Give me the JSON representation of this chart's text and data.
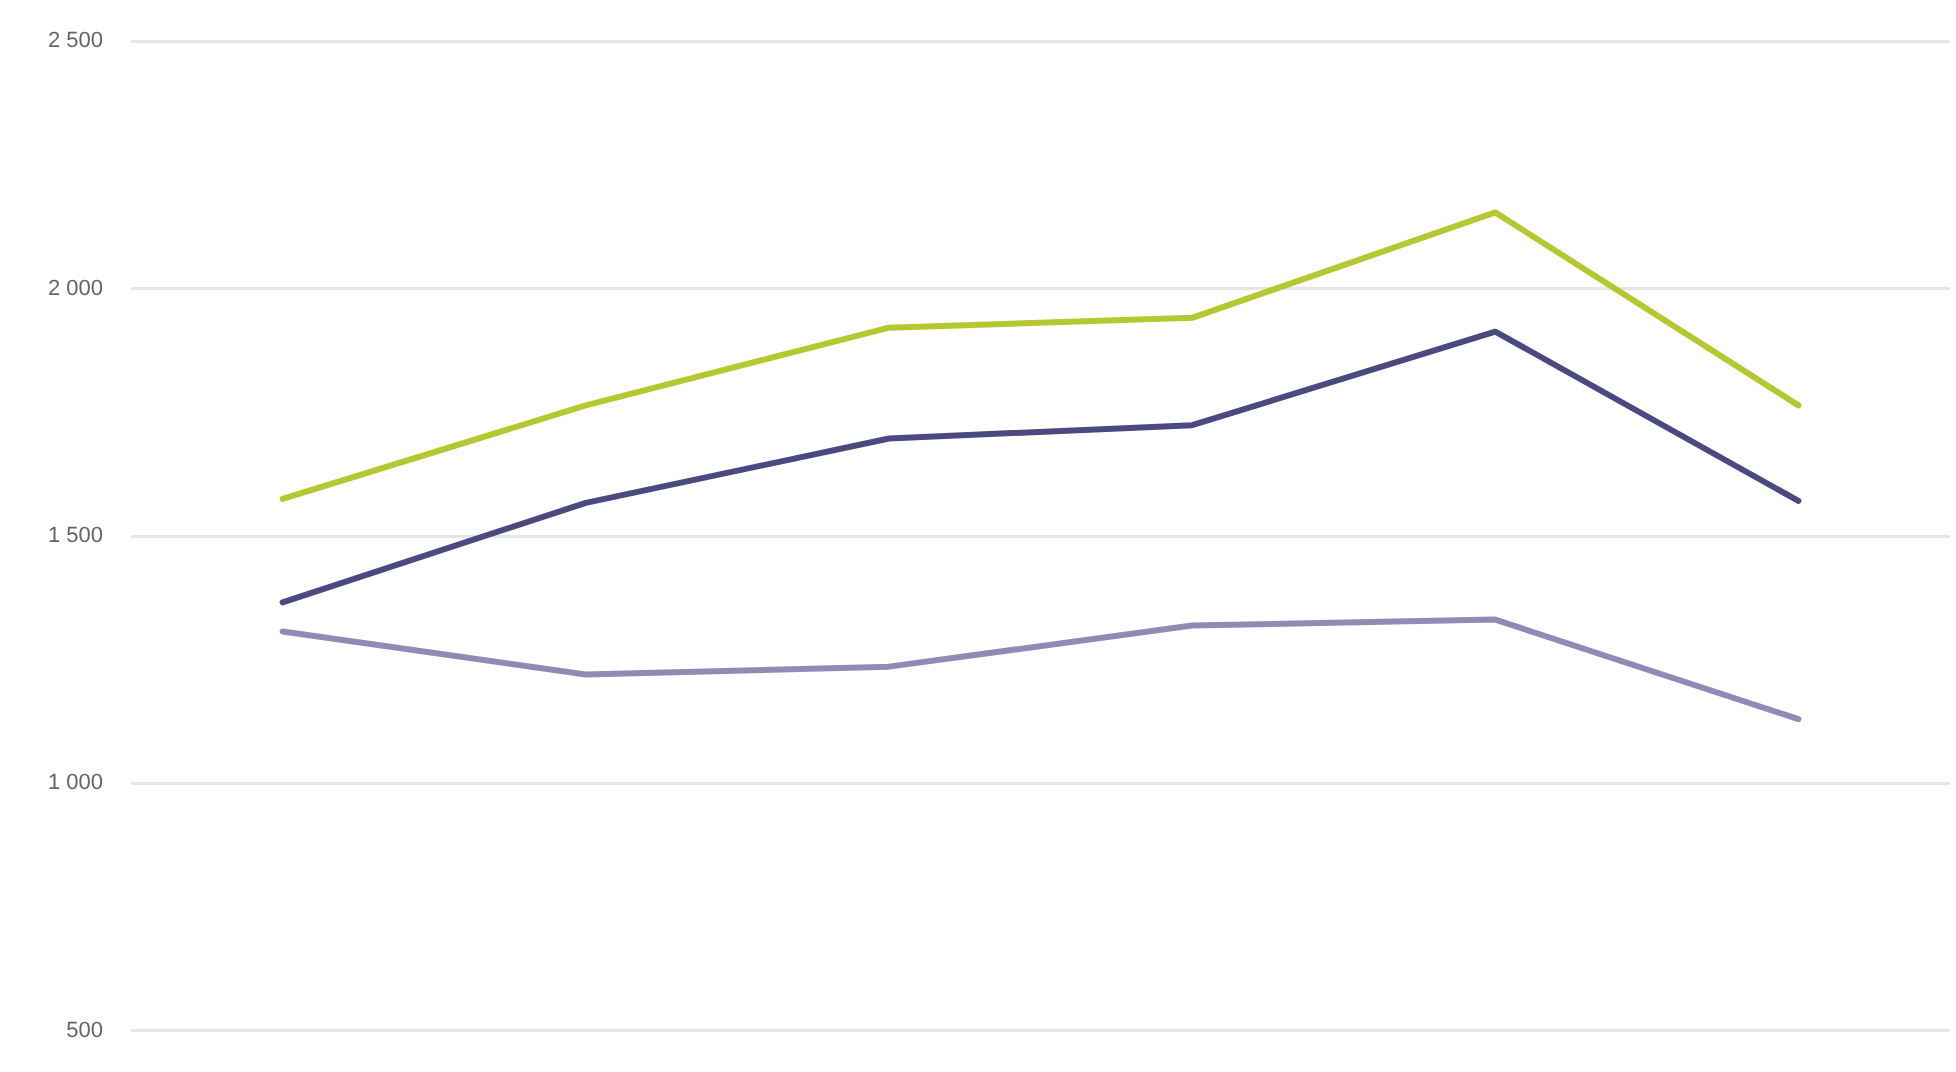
{
  "chart_data": {
    "type": "line",
    "categories": [
      null,
      null,
      null,
      null,
      null,
      null
    ],
    "series": [
      {
        "color": "#b5c832",
        "values": [
          1575,
          1764,
          1921,
          1941,
          2154,
          1764
        ]
      },
      {
        "color": "#4a4a80",
        "values": [
          1366,
          1567,
          1697,
          1724,
          1913,
          1571
        ]
      },
      {
        "color": "#8e8cb5",
        "values": [
          1307,
          1220,
          1236,
          1319,
          1331,
          1130
        ]
      }
    ],
    "ylim": [
      500,
      2500
    ],
    "yticks": [
      {
        "value": 500,
        "label": "500"
      },
      {
        "value": 1000,
        "label": "1 000"
      },
      {
        "value": 1500,
        "label": "1 500"
      },
      {
        "value": 2000,
        "label": "2 000"
      },
      {
        "value": 2500,
        "label": "2 500"
      }
    ],
    "grid": "y",
    "legend": false,
    "marker": "none",
    "line_style": "solid",
    "tick_labels": "y"
  }
}
